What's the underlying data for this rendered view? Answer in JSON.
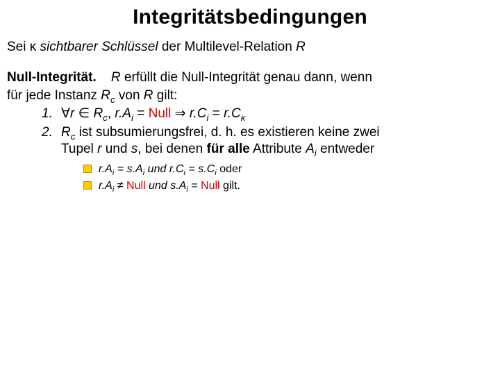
{
  "title": "Integritätsbedingungen",
  "premise": {
    "p1": "Sei ",
    "kappa": "κ",
    "p2": " ",
    "p3": "sichtbarer Schlüssel",
    "p4": " der Multilevel-Relation ",
    "R": "R"
  },
  "section": {
    "heading": "Null-Integrität.",
    "body1_a": "R",
    "body1_b": " erfüllt die Null-Integrität genau dann, wenn",
    "body2_a": "für jede Instanz ",
    "body2_b": "R",
    "body2_b_sub": "c",
    "body2_c": " von ",
    "body2_d": "R",
    "body2_e": " gilt:"
  },
  "item1": {
    "marker": "1.",
    "forall": "∀",
    "r": "r",
    "in": " ∈ ",
    "Rc_R": "R",
    "Rc_c": "c",
    "comma": ", ",
    "rA": "r.A",
    "i1": "i",
    "eqnull": " = ",
    "null": "Null",
    "implies": " ⇒ ",
    "rC": "r.C",
    "i2": "i",
    "eq2": " = ",
    "rCk": "r.C",
    "kappa": "κ"
  },
  "item2": {
    "marker": "2.",
    "a": "R",
    "a_sub": "c",
    "b": " ist subsumierungsfrei, d. h. es existieren keine zwei",
    "c1": "Tupel ",
    "c_r": "r",
    "c2": " und ",
    "c_s": "s",
    "c3": ", bei denen ",
    "c_bold": "für alle",
    "c4": " Attribute ",
    "c_A": "A",
    "c_i": "i",
    "c5": " entweder"
  },
  "bullet1": {
    "rA": "r.A",
    "i1": "i",
    "eq1": " = ",
    "sA": "s.A",
    "i2": "i",
    "und": " und ",
    "rC": "r.C",
    "i3": "i",
    "eq2": " = ",
    "sC": "s.C",
    "i4": "i",
    "oder": " oder"
  },
  "bullet2": {
    "rA": "r.A",
    "i1": "i",
    "neq": " ≠ ",
    "null1": "Null",
    "und": " und ",
    "sA": "s.A",
    "i2": "i",
    "eq": " = ",
    "null2": "Null",
    "gilt": " gilt."
  },
  "colors": {
    "red": "#cc0000",
    "bullet_fill": "#ffcc00",
    "bullet_border": "#b38f00",
    "text": "#000000",
    "background": "#ffffff"
  },
  "fonts": {
    "body_family": "Verdana",
    "title_size_pt": 30,
    "body_size_pt": 19,
    "bullet_size_pt": 16
  }
}
